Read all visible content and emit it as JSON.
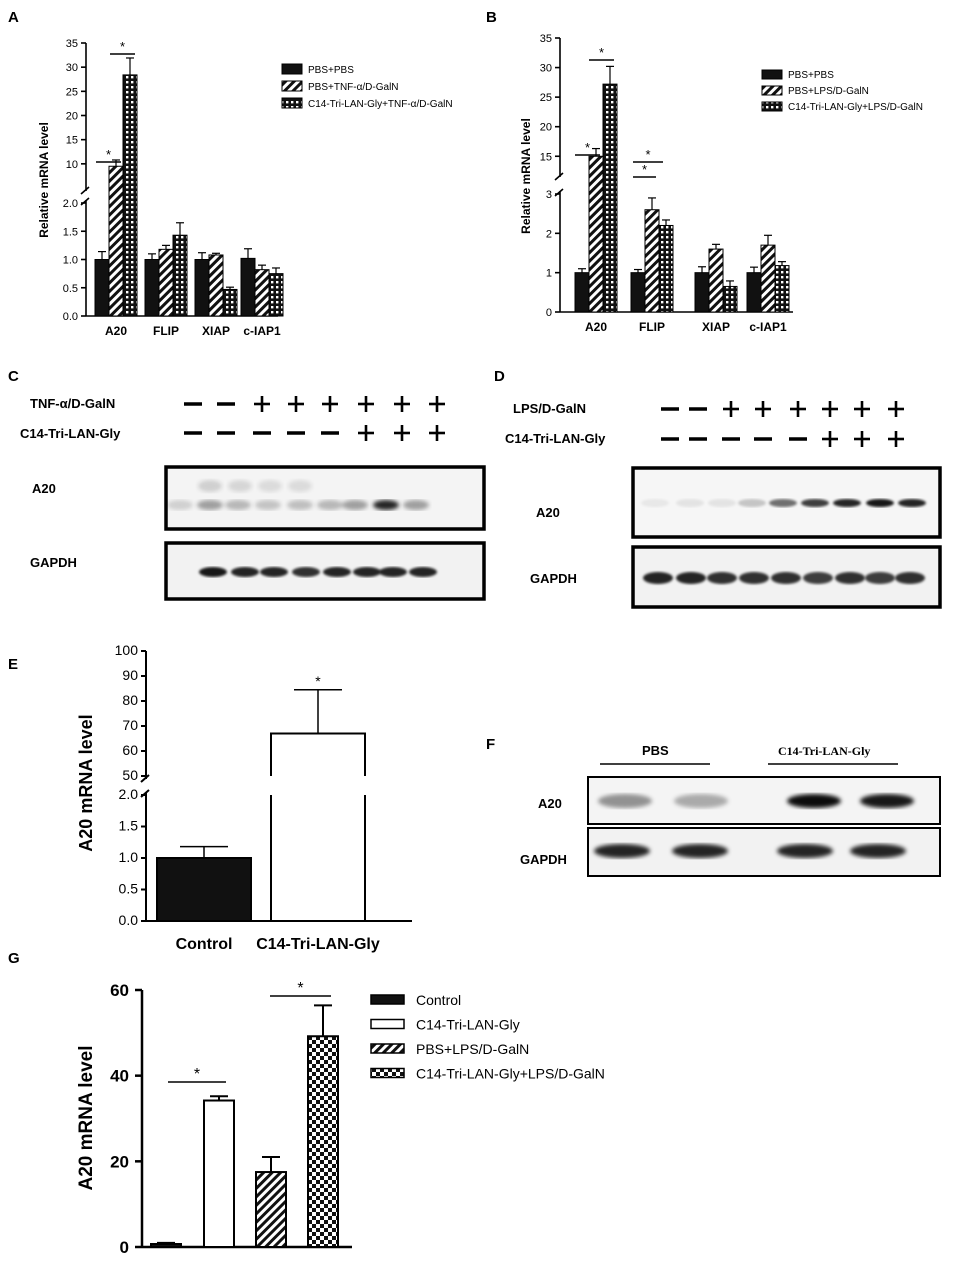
{
  "panels": {
    "a": {
      "letter": "A"
    },
    "b": {
      "letter": "B"
    },
    "c": {
      "letter": "C"
    },
    "d": {
      "letter": "D"
    },
    "e": {
      "letter": "E"
    },
    "f": {
      "letter": "F"
    },
    "g": {
      "letter": "G"
    }
  },
  "chart_data": [
    {
      "id": "A",
      "type": "bar",
      "title": "",
      "xlabel": "",
      "ylabel": "Relative mRNA level",
      "categories": [
        "A20",
        "FLIP",
        "XIAP",
        "c-IAP1"
      ],
      "axis_break": {
        "lower": [
          0,
          2
        ],
        "upper": [
          5,
          35
        ]
      },
      "lower_ticks": [
        0.0,
        0.5,
        1.0,
        1.5,
        2.0
      ],
      "upper_ticks": [
        10,
        15,
        20,
        25,
        30,
        35
      ],
      "series": [
        {
          "name": "PBS+PBS",
          "fill": "solid",
          "values": [
            1.0,
            1.0,
            1.0,
            1.02
          ],
          "errors": [
            0.14,
            0.1,
            0.12,
            0.17
          ]
        },
        {
          "name": "PBS+TNF-α/D-GalN",
          "fill": "hatch",
          "values": [
            9.5,
            1.18,
            1.08,
            0.82
          ],
          "errors": [
            1.3,
            0.07,
            0.03,
            0.08
          ]
        },
        {
          "name": "C14-Tri-LAN-Gly+TNF-α/D-GalN",
          "fill": "dots",
          "values": [
            28.4,
            1.43,
            0.47,
            0.75
          ],
          "errors": [
            3.5,
            0.22,
            0.04,
            0.1
          ]
        }
      ],
      "significance": [
        "*",
        "*"
      ],
      "legend_position": "top-right"
    },
    {
      "id": "B",
      "type": "bar",
      "title": "",
      "xlabel": "",
      "ylabel": "Relative mRNA level",
      "categories": [
        "A20",
        "FLIP",
        "XIAP",
        "c-IAP1"
      ],
      "axis_break": {
        "lower": [
          0,
          3
        ],
        "upper": [
          12,
          35
        ]
      },
      "lower_ticks": [
        0,
        1,
        2,
        3
      ],
      "upper_ticks": [
        15,
        20,
        25,
        30,
        35
      ],
      "series": [
        {
          "name": "PBS+PBS",
          "fill": "solid",
          "values": [
            1.0,
            1.0,
            1.0,
            1.0
          ],
          "errors": [
            0.1,
            0.08,
            0.15,
            0.14
          ]
        },
        {
          "name": "PBS+LPS/D-GalN",
          "fill": "hatch",
          "values": [
            15.0,
            2.6,
            1.6,
            1.7
          ],
          "errors": [
            1.3,
            0.3,
            0.12,
            0.25
          ]
        },
        {
          "name": "C14-Tri-LAN-Gly+LPS/D-GalN",
          "fill": "dots",
          "values": [
            27.2,
            2.2,
            0.65,
            1.18
          ],
          "errors": [
            3.0,
            0.14,
            0.14,
            0.1
          ]
        }
      ],
      "significance": [
        "*",
        "*",
        "*",
        "*"
      ],
      "legend_position": "top-right"
    },
    {
      "id": "E",
      "type": "bar",
      "title": "",
      "xlabel": "",
      "ylabel": "A20 mRNA level",
      "categories": [
        "Control",
        "C14-Tri-LAN-Gly"
      ],
      "axis_break": {
        "lower": [
          0,
          2
        ],
        "upper": [
          50,
          100
        ]
      },
      "lower_ticks": [
        0.0,
        0.5,
        1.0,
        1.5,
        2.0
      ],
      "upper_ticks": [
        50,
        60,
        70,
        80,
        90,
        100
      ],
      "series": [
        {
          "name": "",
          "values": [
            1.0,
            67.0
          ],
          "errors": [
            0.18,
            17.5
          ],
          "fills": [
            "solid",
            "white"
          ]
        }
      ],
      "significance": [
        "*"
      ]
    },
    {
      "id": "G",
      "type": "bar",
      "title": "",
      "xlabel": "",
      "ylabel": "A20 mRNA level",
      "categories": [
        "Control",
        "C14-Tri-LAN-Gly",
        "PBS+LPS/D-GalN",
        "C14-Tri-LAN-Gly+LPS/D-GalN"
      ],
      "ylim": [
        0,
        60
      ],
      "yticks": [
        0,
        20,
        40,
        60
      ],
      "series": [
        {
          "name": "",
          "values": [
            0.7,
            34.2,
            17.5,
            49.2
          ],
          "errors": [
            0.25,
            1.0,
            3.5,
            7.2
          ],
          "fills": [
            "solid",
            "white",
            "hatch",
            "checker"
          ]
        }
      ],
      "legend": [
        "Control",
        "C14-Tri-LAN-Gly",
        "PBS+LPS/D-GalN",
        "C14-Tri-LAN-Gly+LPS/D-GalN"
      ],
      "significance": [
        "*",
        "*"
      ],
      "legend_position": "top-right"
    }
  ],
  "blot_c": {
    "row1_label": "TNF-α/D-GalN",
    "row2_label": "C14-Tri-LAN-Gly",
    "row1_signs": [
      "—",
      "—",
      "+",
      "+",
      "+",
      "+",
      "+",
      "+"
    ],
    "row2_signs": [
      "—",
      "—",
      "—",
      "—",
      "—",
      "+",
      "+",
      "+"
    ],
    "bands": [
      "A20",
      "GAPDH"
    ]
  },
  "blot_d": {
    "row1_label": "LPS/D-GalN",
    "row2_label": "C14-Tri-LAN-Gly",
    "row1_signs": [
      "—",
      "—",
      "+",
      "+",
      "+",
      "+",
      "+",
      "+"
    ],
    "row2_signs": [
      "—",
      "—",
      "—",
      "—",
      "—",
      "+",
      "+",
      "+"
    ],
    "bands": [
      "A20",
      "GAPDH"
    ]
  },
  "blot_f": {
    "group1": "PBS",
    "group2": "C14-Tri-LAN-Gly",
    "bands": [
      "A20",
      "GAPDH"
    ]
  }
}
